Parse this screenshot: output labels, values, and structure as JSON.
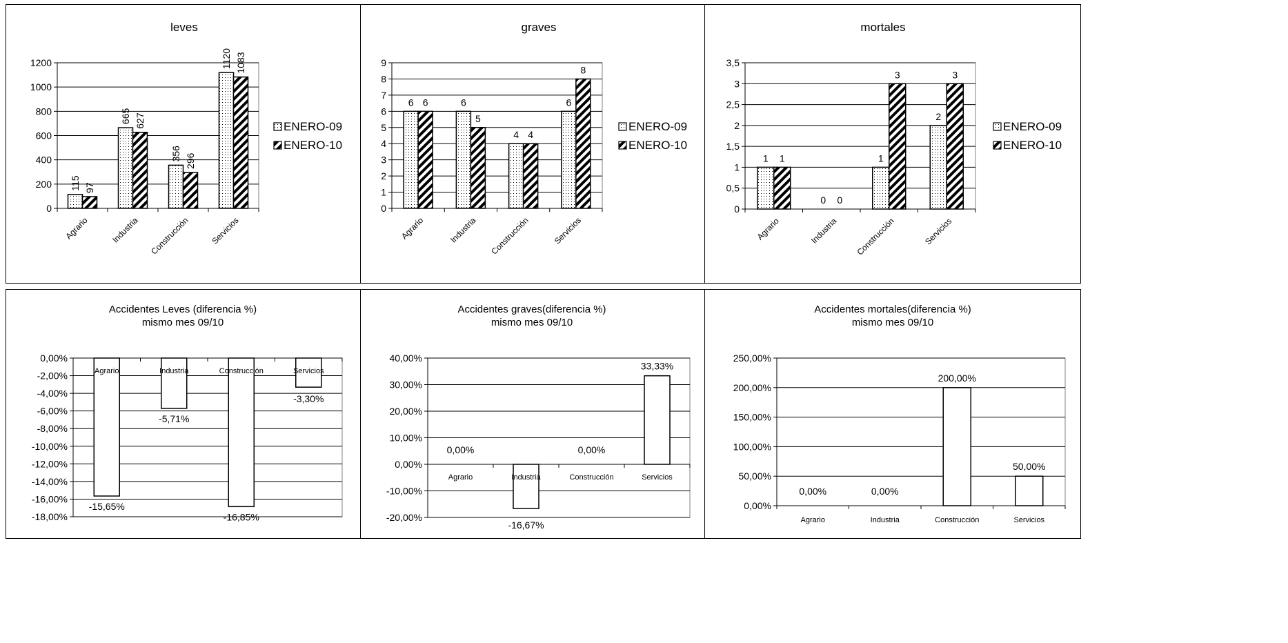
{
  "legend_labels": [
    "ENERO-09",
    "ENERO-10"
  ],
  "categories": [
    "Agrario",
    "Industria",
    "Construcción",
    "Servicios"
  ],
  "chart_data": [
    {
      "type": "bar",
      "title": "leves",
      "categories": [
        "Agrario",
        "Industria",
        "Construcción",
        "Servicios"
      ],
      "series": [
        {
          "name": "ENERO-09",
          "values": [
            115,
            665,
            356,
            1120
          ]
        },
        {
          "name": "ENERO-10",
          "values": [
            97,
            627,
            296,
            1083
          ]
        }
      ],
      "value_labels": [
        [
          "115",
          "665",
          "356",
          "1120"
        ],
        [
          "97",
          "627",
          "296",
          "1083"
        ]
      ],
      "ylim": [
        0,
        1200
      ],
      "yticks": [
        "0",
        "200",
        "400",
        "600",
        "800",
        "1000",
        "1200"
      ],
      "grid": true,
      "legend": "right"
    },
    {
      "type": "bar",
      "title": "graves",
      "categories": [
        "Agrario",
        "Industria",
        "Construcción",
        "Servicios"
      ],
      "series": [
        {
          "name": "ENERO-09",
          "values": [
            6,
            6,
            4,
            6
          ]
        },
        {
          "name": "ENERO-10",
          "values": [
            6,
            5,
            4,
            8
          ]
        }
      ],
      "value_labels": [
        [
          "6",
          "6",
          "4",
          "6"
        ],
        [
          "6",
          "5",
          "4",
          "8"
        ]
      ],
      "ylim": [
        0,
        9
      ],
      "yticks": [
        "0",
        "1",
        "2",
        "3",
        "4",
        "5",
        "6",
        "7",
        "8",
        "9"
      ],
      "grid": true,
      "legend": "right"
    },
    {
      "type": "bar",
      "title": "mortales",
      "categories": [
        "Agrario",
        "Industria",
        "Construcción",
        "Servicios"
      ],
      "series": [
        {
          "name": "ENERO-09",
          "values": [
            1,
            0,
            1,
            2
          ]
        },
        {
          "name": "ENERO-10",
          "values": [
            1,
            0,
            3,
            3
          ]
        }
      ],
      "value_labels": [
        [
          "1",
          "0",
          "1",
          "2"
        ],
        [
          "1",
          "0",
          "3",
          "3"
        ]
      ],
      "ylim": [
        0,
        3.5
      ],
      "yticks": [
        "0",
        "0,5",
        "1",
        "1,5",
        "2",
        "2,5",
        "3",
        "3,5"
      ],
      "grid": true,
      "legend": "right"
    },
    {
      "type": "bar",
      "title": [
        "Accidentes Leves (diferencia %)",
        "mismo mes 09/10"
      ],
      "categories": [
        "Agrario",
        "Industria",
        "Construcción",
        "Servicios"
      ],
      "values": [
        -15.65,
        -5.71,
        -16.85,
        -3.3
      ],
      "value_labels": [
        "-15,65%",
        "-5,71%",
        "-16,85%",
        "-3,30%"
      ],
      "ylim": [
        -18,
        0
      ],
      "yticks": [
        "0,00%",
        "-2,00%",
        "-4,00%",
        "-6,00%",
        "-8,00%",
        "-10,00%",
        "-12,00%",
        "-14,00%",
        "-16,00%",
        "-18,00%"
      ],
      "grid": true
    },
    {
      "type": "bar",
      "title": [
        "Accidentes graves(diferencia %)",
        "mismo mes 09/10"
      ],
      "categories": [
        "Agrario",
        "Industria",
        "Construcción",
        "Servicios"
      ],
      "values": [
        0,
        -16.67,
        0,
        33.33
      ],
      "value_labels": [
        "0,00%",
        "-16,67%",
        "0,00%",
        "33,33%"
      ],
      "ylim": [
        -20,
        40
      ],
      "yticks": [
        "40,00%",
        "30,00%",
        "20,00%",
        "10,00%",
        "0,00%",
        "-10,00%",
        "-20,00%"
      ],
      "grid": true
    },
    {
      "type": "bar",
      "title": [
        "Accidentes mortales(diferencia %)",
        "mismo mes 09/10"
      ],
      "categories": [
        "Agrario",
        "Industria",
        "Construcción",
        "Servicios"
      ],
      "values": [
        0,
        0,
        200,
        50
      ],
      "value_labels": [
        "0,00%",
        "0,00%",
        "200,00%",
        "50,00%"
      ],
      "ylim": [
        0,
        250
      ],
      "yticks": [
        "250,00%",
        "200,00%",
        "150,00%",
        "100,00%",
        "50,00%",
        "0,00%"
      ],
      "grid": true
    }
  ]
}
